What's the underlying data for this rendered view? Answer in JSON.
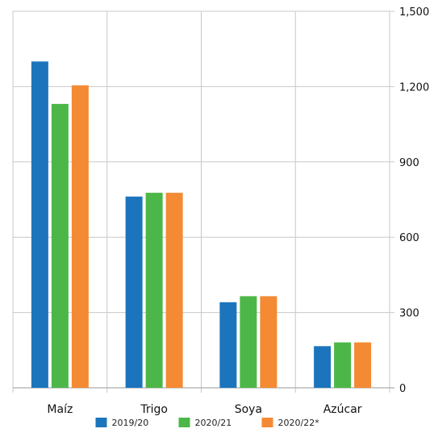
{
  "chart_data": {
    "type": "bar",
    "categories": [
      "Maíz",
      "Trigo",
      "Soya",
      "Azúcar"
    ],
    "series": [
      {
        "name": "2019/20",
        "color": "#1c75bc",
        "values": [
          1300,
          762,
          341,
          166
        ]
      },
      {
        "name": "2020/21",
        "color": "#4cb748",
        "values": [
          1131,
          777,
          365,
          181
        ]
      },
      {
        "name": "2020/22*",
        "color": "#f48a34",
        "values": [
          1205,
          777,
          365,
          181
        ]
      }
    ],
    "ylim": [
      0,
      1500
    ],
    "yticks": [
      "0",
      "300",
      "600",
      "900",
      "1,200",
      "1,500"
    ],
    "y_axis_side": "right",
    "grid": true,
    "legend_position": "bottom",
    "title": "",
    "xlabel": "",
    "ylabel": ""
  }
}
